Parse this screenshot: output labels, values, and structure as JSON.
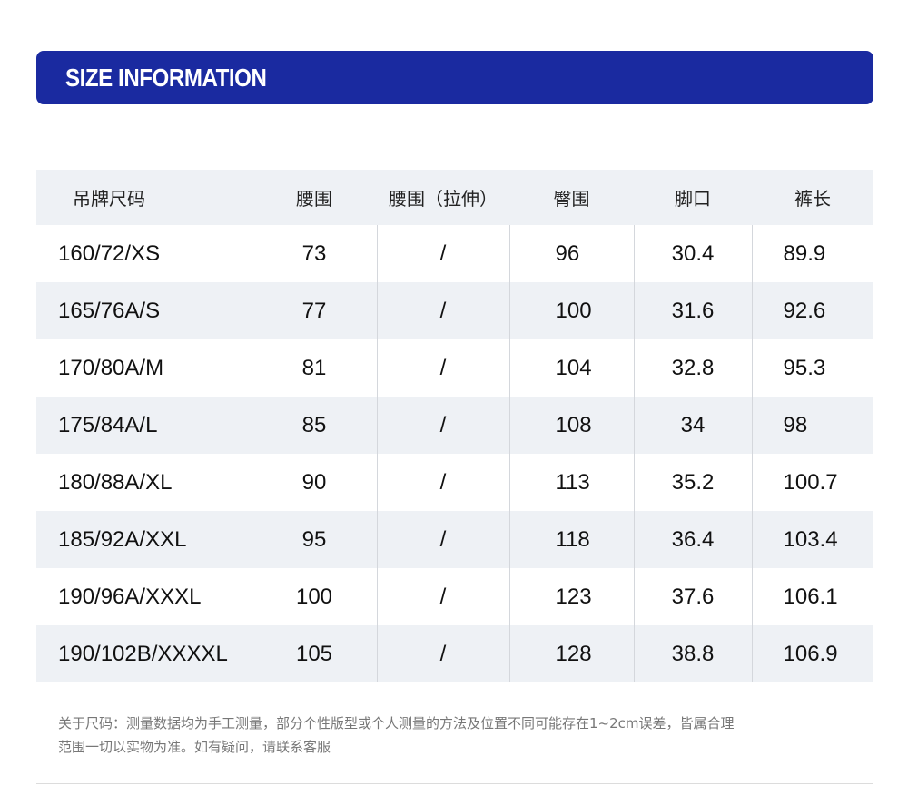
{
  "banner": {
    "title": "SIZE INFORMATION"
  },
  "table": {
    "headers": [
      "吊牌尺码",
      "腰围",
      "腰围（拉伸）",
      "臀围",
      "脚口",
      "裤长"
    ],
    "rows": [
      [
        "160/72/XS",
        "73",
        "/",
        "96",
        "30.4",
        "89.9"
      ],
      [
        "165/76A/S",
        "77",
        "/",
        "100",
        "31.6",
        "92.6"
      ],
      [
        "170/80A/M",
        "81",
        "/",
        "104",
        "32.8",
        "95.3"
      ],
      [
        "175/84A/L",
        "85",
        "/",
        "108",
        "34",
        "98"
      ],
      [
        "180/88A/XL",
        "90",
        "/",
        "113",
        "35.2",
        "100.7"
      ],
      [
        "185/92A/XXL",
        "95",
        "/",
        "118",
        "36.4",
        "103.4"
      ],
      [
        "190/96A/XXXL",
        "100",
        "/",
        "123",
        "37.6",
        "106.1"
      ],
      [
        "190/102B/XXXXL",
        "105",
        "/",
        "128",
        "38.8",
        "106.9"
      ]
    ]
  },
  "note": {
    "line1": "关于尺码：测量数据均为手工测量，部分个性版型或个人测量的方法及位置不同可能存在1~2cm误差，皆属合理",
    "line2": "范围一切以实物为准。如有疑问，请联系客服"
  }
}
